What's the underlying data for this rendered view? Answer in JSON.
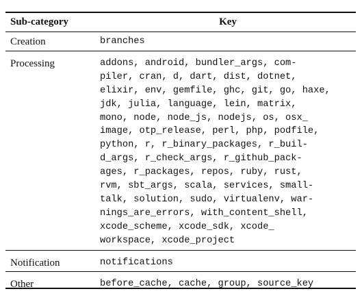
{
  "table": {
    "header": [
      "Sub-category",
      "Key"
    ],
    "rows": [
      [
        "Creation",
        [
          "branches"
        ]
      ],
      [
        "Processing",
        [
          "addons, android, bundler_args, com-",
          "piler, cran, d, dart, dist, dotnet,",
          "elixir, env, gemfile, ghc, git, go, haxe,",
          "jdk, julia, language, lein, matrix,",
          "mono, node, node_js, nodejs, os, osx_",
          "image, otp_release, perl, php, podfile,",
          "python, r, r_binary_packages, r_buil-",
          "d_args, r_check_args, r_github_pack-",
          "ages, r_packages, repos, ruby, rust,",
          "rvm, sbt_args, scala, services, small-",
          "talk, solution, sudo, virtualenv, war-",
          "nings_are_errors, with_content_shell,",
          "xcode_scheme, xcode_sdk, xcode_",
          "workspace, xcode_project"
        ]
      ],
      [
        "Notification",
        [
          "notifications"
        ]
      ],
      [
        "Other",
        [
          "before_cache, cache, group, source_key"
        ]
      ]
    ]
  }
}
